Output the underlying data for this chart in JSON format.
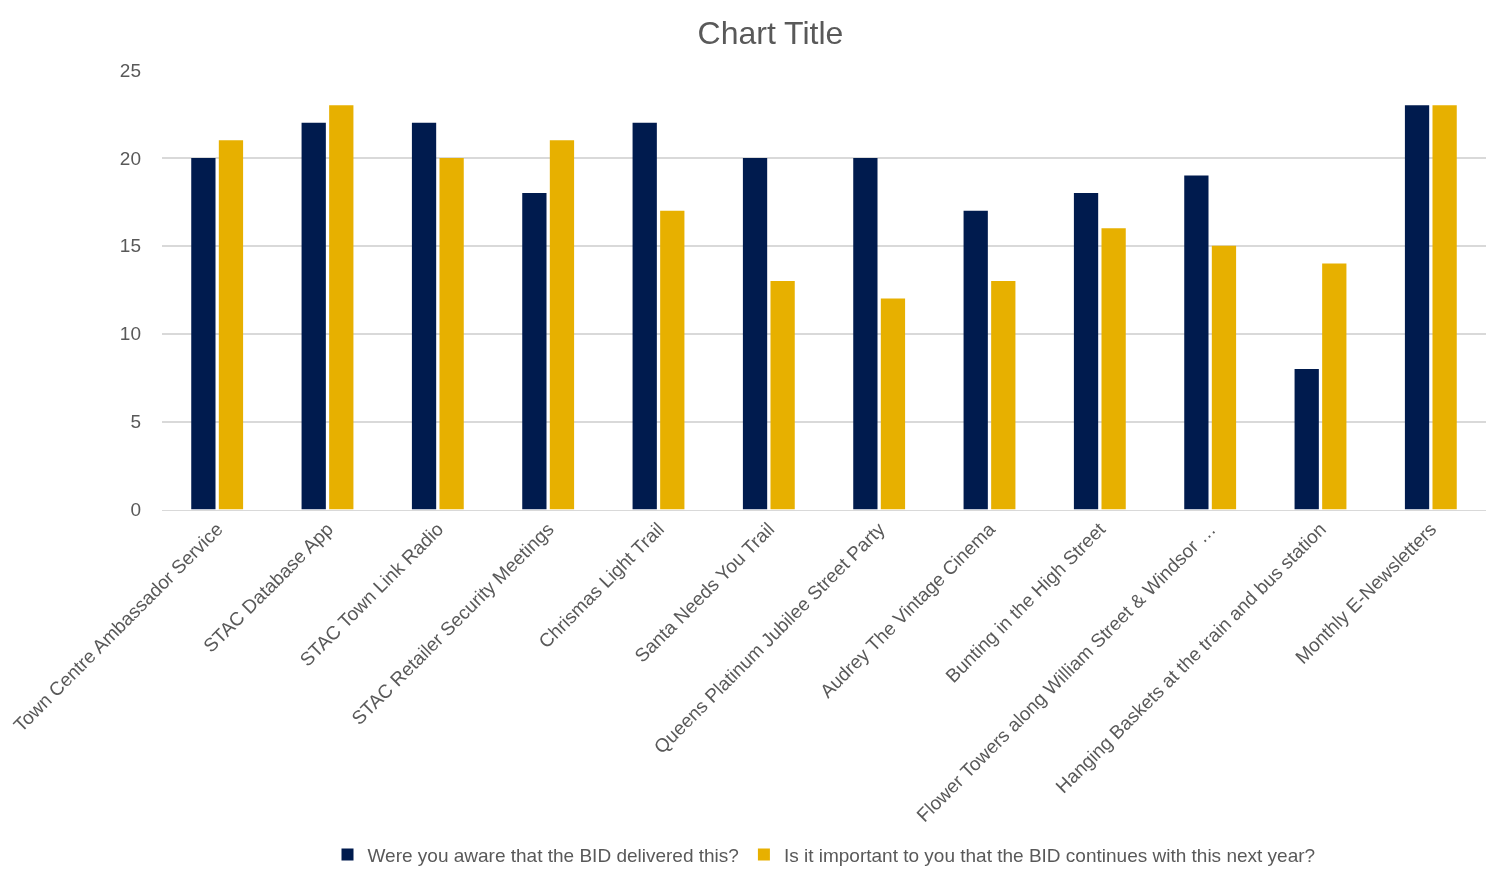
{
  "chart_data": {
    "type": "bar",
    "title": "Chart Title",
    "categories": [
      "Town Centre Ambassador Service",
      "STAC Database App",
      "STAC Town Link Radio",
      "STAC Retailer Security Meetings",
      "Chrismas Light Trail",
      "Santa Needs You Trail",
      "Queens Platinum Jubilee Street Party",
      "Audrey The Vintage Cinema",
      "Bunting in the High Street",
      "Flower Towers along William Street & Windsor …",
      "Hanging Baskets at the train and bus station",
      "Monthly E-Newsletters"
    ],
    "series": [
      {
        "name": "Were you aware that the BID delivered this?",
        "color": "#001b4e",
        "values": [
          20,
          22,
          22,
          18,
          22,
          20,
          20,
          17,
          18,
          19,
          8,
          23
        ]
      },
      {
        "name": "Is it important to you that the BID continues with this next year?",
        "color": "#e7b000",
        "values": [
          21,
          23,
          20,
          21,
          17,
          13,
          12,
          13,
          16,
          15,
          14,
          23
        ]
      }
    ],
    "ylim": [
      0,
      25
    ],
    "yticks": [
      0,
      5,
      10,
      15,
      20,
      25
    ],
    "grid": "y",
    "legend": "bottom"
  }
}
